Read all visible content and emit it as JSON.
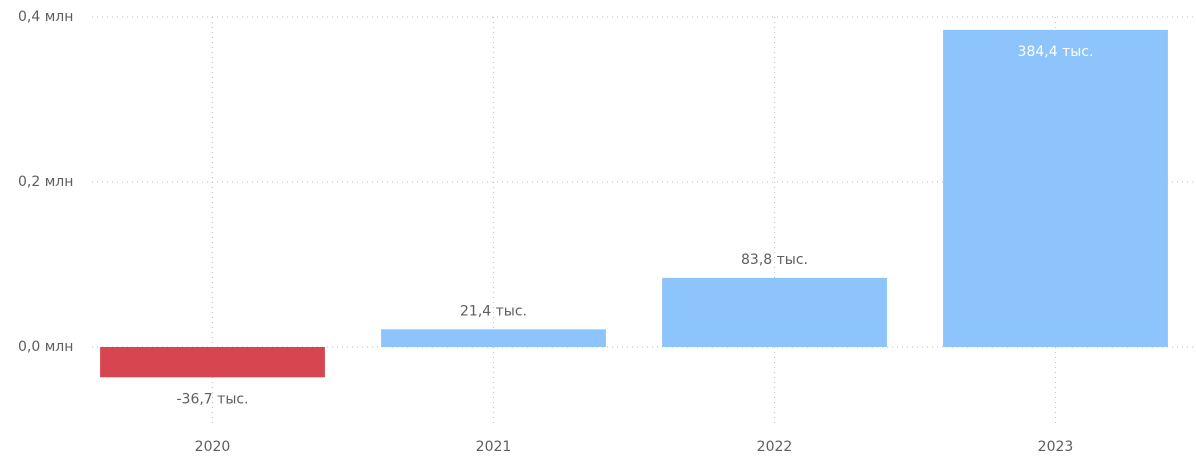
{
  "chart_data": {
    "type": "bar",
    "categories": [
      "2020",
      "2021",
      "2022",
      "2023"
    ],
    "values": [
      -36700,
      21400,
      83800,
      384400
    ],
    "value_labels": [
      "-36,7 тыс.",
      "21,4 тыс.",
      "83,8 тыс.",
      "384,4 тыс."
    ],
    "color": "#8cc4fb",
    "negative_color": "#d64550",
    "ylim": [
      -100000,
      400000
    ],
    "yticks": [
      {
        "value": 0,
        "label": "0,0 млн"
      },
      {
        "value": 200000,
        "label": "0,2 млн"
      },
      {
        "value": 400000,
        "label": "0,4 млн"
      }
    ],
    "grid": true
  }
}
